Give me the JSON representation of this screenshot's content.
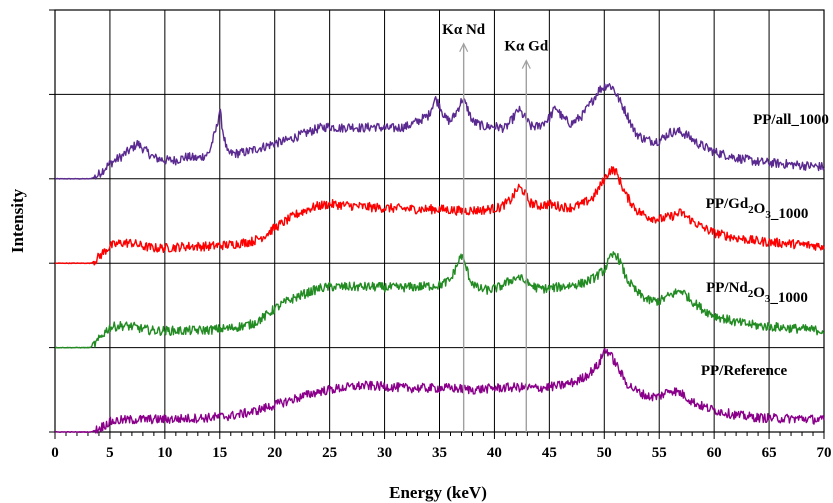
{
  "chart_data": {
    "type": "line",
    "title": "",
    "xlabel": "Energy (keV)",
    "ylabel": "Intensity",
    "xlim": [
      0,
      70
    ],
    "ylim": [
      0,
      5
    ],
    "xticks": [
      "0",
      "5",
      "10",
      "15",
      "20",
      "25",
      "30",
      "35",
      "40",
      "45",
      "50",
      "55",
      "60",
      "65",
      "70"
    ],
    "grid": true,
    "legend": "none",
    "annotations": [
      {
        "label_main": "Kα",
        "label_elem": "Nd",
        "x": 37.2,
        "y_top": 4.6,
        "y_bottom": 0
      },
      {
        "label_main": "Kα",
        "label_elem": "Gd",
        "x": 42.9,
        "y_top": 4.4,
        "y_bottom": 0
      }
    ],
    "series": [
      {
        "name": "PP/all_1000",
        "color": "#5b2a90",
        "base": 3.0,
        "points": [
          [
            0,
            3.0
          ],
          [
            3.2,
            3.0
          ],
          [
            3.8,
            3.03
          ],
          [
            4.5,
            3.12
          ],
          [
            5,
            3.18
          ],
          [
            6,
            3.26
          ],
          [
            7,
            3.36
          ],
          [
            7.5,
            3.42
          ],
          [
            8,
            3.36
          ],
          [
            9,
            3.25
          ],
          [
            10,
            3.22
          ],
          [
            11,
            3.22
          ],
          [
            12,
            3.26
          ],
          [
            13,
            3.24
          ],
          [
            14,
            3.3
          ],
          [
            14.7,
            3.6
          ],
          [
            15,
            3.82
          ],
          [
            15.3,
            3.55
          ],
          [
            15.7,
            3.3
          ],
          [
            16.5,
            3.3
          ],
          [
            17.5,
            3.32
          ],
          [
            18,
            3.34
          ],
          [
            19,
            3.38
          ],
          [
            20,
            3.42
          ],
          [
            21,
            3.45
          ],
          [
            22,
            3.5
          ],
          [
            23,
            3.55
          ],
          [
            24,
            3.6
          ],
          [
            25,
            3.62
          ],
          [
            26,
            3.6
          ],
          [
            27,
            3.62
          ],
          [
            28,
            3.6
          ],
          [
            29,
            3.62
          ],
          [
            30,
            3.6
          ],
          [
            31,
            3.6
          ],
          [
            32,
            3.62
          ],
          [
            33,
            3.68
          ],
          [
            34,
            3.75
          ],
          [
            34.6,
            3.95
          ],
          [
            35,
            3.88
          ],
          [
            35.5,
            3.72
          ],
          [
            36,
            3.68
          ],
          [
            36.5,
            3.78
          ],
          [
            37.1,
            3.95
          ],
          [
            37.5,
            3.85
          ],
          [
            38,
            3.68
          ],
          [
            39,
            3.62
          ],
          [
            40,
            3.62
          ],
          [
            41,
            3.6
          ],
          [
            41.6,
            3.7
          ],
          [
            42.2,
            3.82
          ],
          [
            42.8,
            3.72
          ],
          [
            43.3,
            3.62
          ],
          [
            44,
            3.62
          ],
          [
            45,
            3.72
          ],
          [
            45.6,
            3.85
          ],
          [
            46.2,
            3.72
          ],
          [
            47,
            3.65
          ],
          [
            48,
            3.75
          ],
          [
            48.8,
            3.9
          ],
          [
            49.5,
            4.05
          ],
          [
            50.3,
            4.12
          ],
          [
            50.8,
            4.08
          ],
          [
            51.3,
            3.95
          ],
          [
            52,
            3.78
          ],
          [
            52.8,
            3.55
          ],
          [
            53.5,
            3.48
          ],
          [
            54.2,
            3.45
          ],
          [
            55,
            3.45
          ],
          [
            56,
            3.55
          ],
          [
            56.8,
            3.56
          ],
          [
            57.5,
            3.52
          ],
          [
            58.5,
            3.42
          ],
          [
            60,
            3.32
          ],
          [
            62,
            3.25
          ],
          [
            64,
            3.2
          ],
          [
            66,
            3.18
          ],
          [
            68,
            3.16
          ],
          [
            70,
            3.14
          ]
        ]
      },
      {
        "name": "PP/Gd₂O₃_1000",
        "label_main": "PP/Gd",
        "label_sub1": "2",
        "label_mid": "O",
        "label_sub2": "3",
        "label_tail": "_1000",
        "color": "#ff0000",
        "base": 2.0,
        "points": [
          [
            0,
            2.0
          ],
          [
            3.3,
            2.0
          ],
          [
            3.8,
            2.05
          ],
          [
            4.5,
            2.14
          ],
          [
            5,
            2.2
          ],
          [
            6,
            2.24
          ],
          [
            7,
            2.24
          ],
          [
            8,
            2.2
          ],
          [
            9,
            2.18
          ],
          [
            10,
            2.18
          ],
          [
            12,
            2.2
          ],
          [
            14,
            2.2
          ],
          [
            16,
            2.22
          ],
          [
            18,
            2.26
          ],
          [
            19,
            2.32
          ],
          [
            20,
            2.42
          ],
          [
            21,
            2.5
          ],
          [
            22,
            2.58
          ],
          [
            23,
            2.64
          ],
          [
            24,
            2.68
          ],
          [
            25,
            2.7
          ],
          [
            27,
            2.68
          ],
          [
            29,
            2.66
          ],
          [
            31,
            2.65
          ],
          [
            33,
            2.64
          ],
          [
            35,
            2.64
          ],
          [
            37,
            2.62
          ],
          [
            39,
            2.63
          ],
          [
            40.5,
            2.66
          ],
          [
            41.5,
            2.75
          ],
          [
            42.2,
            2.9
          ],
          [
            42.7,
            2.85
          ],
          [
            43.2,
            2.72
          ],
          [
            44,
            2.68
          ],
          [
            45,
            2.7
          ],
          [
            46,
            2.67
          ],
          [
            47,
            2.66
          ],
          [
            48,
            2.7
          ],
          [
            49,
            2.78
          ],
          [
            49.8,
            2.95
          ],
          [
            50.5,
            3.1
          ],
          [
            51,
            3.1
          ],
          [
            51.5,
            2.95
          ],
          [
            52,
            2.8
          ],
          [
            53,
            2.62
          ],
          [
            54,
            2.55
          ],
          [
            55,
            2.52
          ],
          [
            56,
            2.55
          ],
          [
            57,
            2.6
          ],
          [
            58,
            2.5
          ],
          [
            59,
            2.42
          ],
          [
            60,
            2.36
          ],
          [
            62,
            2.3
          ],
          [
            64,
            2.26
          ],
          [
            66,
            2.24
          ],
          [
            68,
            2.22
          ],
          [
            70,
            2.2
          ]
        ]
      },
      {
        "name": "PP/Nd₂O₃_1000",
        "label_main": "PP/Nd",
        "label_sub1": "2",
        "label_mid": "O",
        "label_sub2": "3",
        "label_tail": "_1000",
        "color": "#228b22",
        "base": 1.0,
        "points": [
          [
            0,
            1.0
          ],
          [
            3.2,
            1.0
          ],
          [
            3.8,
            1.06
          ],
          [
            4.5,
            1.18
          ],
          [
            5,
            1.24
          ],
          [
            6,
            1.26
          ],
          [
            7,
            1.25
          ],
          [
            8,
            1.22
          ],
          [
            9,
            1.2
          ],
          [
            10,
            1.2
          ],
          [
            12,
            1.2
          ],
          [
            14,
            1.21
          ],
          [
            16,
            1.23
          ],
          [
            18,
            1.28
          ],
          [
            19,
            1.36
          ],
          [
            20,
            1.46
          ],
          [
            21,
            1.54
          ],
          [
            22,
            1.6
          ],
          [
            23,
            1.65
          ],
          [
            24,
            1.7
          ],
          [
            25,
            1.72
          ],
          [
            27,
            1.72
          ],
          [
            29,
            1.72
          ],
          [
            31,
            1.71
          ],
          [
            33,
            1.72
          ],
          [
            35,
            1.74
          ],
          [
            36,
            1.8
          ],
          [
            36.6,
            1.98
          ],
          [
            37,
            2.1
          ],
          [
            37.4,
            1.96
          ],
          [
            37.8,
            1.8
          ],
          [
            38.5,
            1.7
          ],
          [
            39.5,
            1.68
          ],
          [
            40.5,
            1.72
          ],
          [
            41.5,
            1.8
          ],
          [
            42.2,
            1.84
          ],
          [
            43,
            1.76
          ],
          [
            44,
            1.7
          ],
          [
            45,
            1.7
          ],
          [
            46,
            1.72
          ],
          [
            47,
            1.74
          ],
          [
            48,
            1.76
          ],
          [
            49,
            1.82
          ],
          [
            50,
            1.92
          ],
          [
            50.5,
            2.05
          ],
          [
            51,
            2.12
          ],
          [
            51.5,
            2.0
          ],
          [
            52,
            1.82
          ],
          [
            53,
            1.65
          ],
          [
            54,
            1.56
          ],
          [
            55,
            1.55
          ],
          [
            56,
            1.62
          ],
          [
            57,
            1.68
          ],
          [
            58,
            1.55
          ],
          [
            59,
            1.45
          ],
          [
            60,
            1.38
          ],
          [
            62,
            1.3
          ],
          [
            64,
            1.26
          ],
          [
            66,
            1.24
          ],
          [
            68,
            1.22
          ],
          [
            70,
            1.2
          ]
        ]
      },
      {
        "name": "PP/Reference",
        "color": "#8b008b",
        "base": 0.0,
        "points": [
          [
            0,
            0.0
          ],
          [
            3.3,
            0.0
          ],
          [
            4,
            0.04
          ],
          [
            5,
            0.12
          ],
          [
            6,
            0.14
          ],
          [
            8,
            0.15
          ],
          [
            10,
            0.15
          ],
          [
            12,
            0.16
          ],
          [
            14,
            0.17
          ],
          [
            16,
            0.19
          ],
          [
            18,
            0.24
          ],
          [
            20,
            0.32
          ],
          [
            22,
            0.4
          ],
          [
            24,
            0.48
          ],
          [
            26,
            0.52
          ],
          [
            28,
            0.55
          ],
          [
            30,
            0.54
          ],
          [
            32,
            0.52
          ],
          [
            34,
            0.52
          ],
          [
            36,
            0.52
          ],
          [
            38,
            0.5
          ],
          [
            40,
            0.52
          ],
          [
            42,
            0.53
          ],
          [
            44,
            0.52
          ],
          [
            46,
            0.55
          ],
          [
            47.5,
            0.6
          ],
          [
            48.5,
            0.68
          ],
          [
            49.5,
            0.8
          ],
          [
            50,
            0.97
          ],
          [
            50.4,
            0.95
          ],
          [
            51,
            0.82
          ],
          [
            52,
            0.58
          ],
          [
            53,
            0.48
          ],
          [
            54,
            0.42
          ],
          [
            55,
            0.42
          ],
          [
            56,
            0.5
          ],
          [
            57,
            0.46
          ],
          [
            58,
            0.36
          ],
          [
            59,
            0.3
          ],
          [
            60,
            0.26
          ],
          [
            62,
            0.2
          ],
          [
            64,
            0.17
          ],
          [
            66,
            0.16
          ],
          [
            68,
            0.16
          ],
          [
            70,
            0.14
          ]
        ]
      }
    ]
  }
}
